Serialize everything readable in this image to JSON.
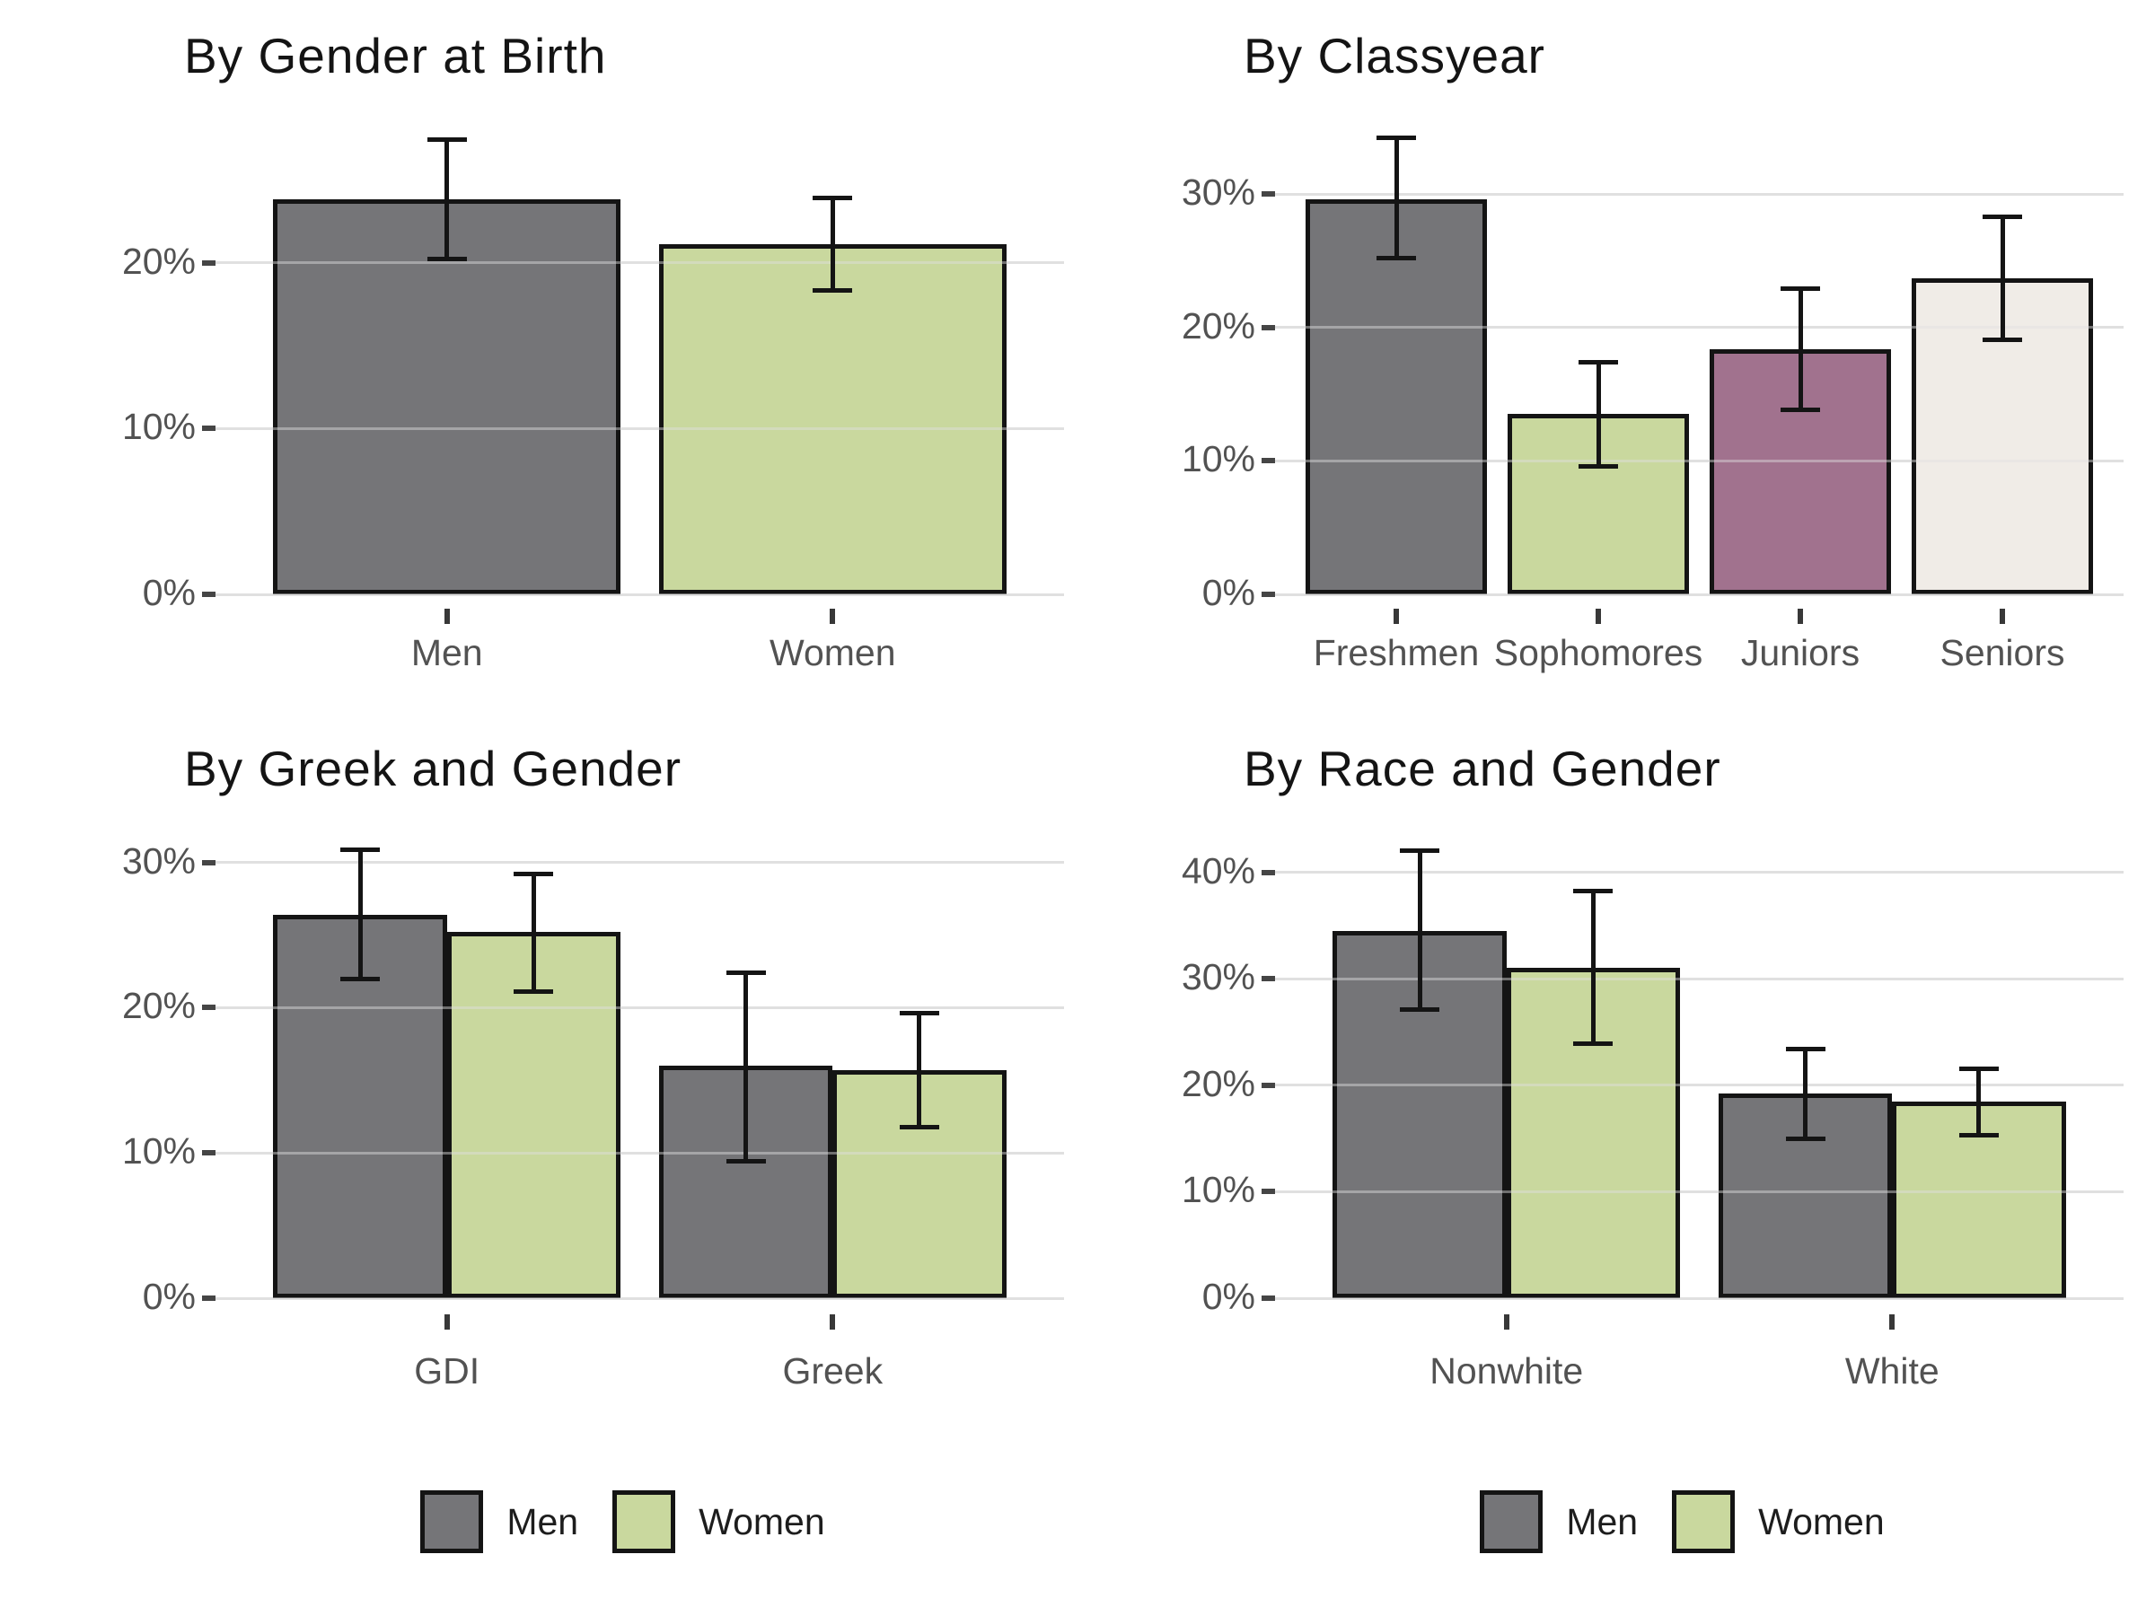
{
  "palette": {
    "background": "#ffffff",
    "men_gray": "#757578",
    "women_green": "#c9d89e",
    "juniors_purple": "#a1728e",
    "seniors_cream": "#f0ece7",
    "bar_outline": "#141414",
    "error_bar": "#141414",
    "gridline": "#e0e0e0",
    "axis_text": "#525252",
    "title_text": "#141414"
  },
  "chart_data": [
    {
      "id": "gender_at_birth",
      "type": "bar",
      "title": "By Gender at Birth",
      "ylabel": "",
      "xlabel": "",
      "grid": "horizontal",
      "ylim": [
        0,
        28.8
      ],
      "yticks": [
        {
          "value": 0,
          "label": "0%"
        },
        {
          "value": 10,
          "label": "10%"
        },
        {
          "value": 20,
          "label": "20%"
        }
      ],
      "categories": [
        "Men",
        "Women"
      ],
      "bars": [
        {
          "category": "Men",
          "value": 23.8,
          "ci_low": 20.2,
          "ci_high": 27.4,
          "color_key": "men_gray"
        },
        {
          "category": "Women",
          "value": 21.1,
          "ci_low": 18.3,
          "ci_high": 23.9,
          "color_key": "women_green"
        }
      ],
      "legend": null
    },
    {
      "id": "classyear",
      "type": "bar",
      "title": "By Classyear",
      "ylabel": "",
      "xlabel": "",
      "grid": "horizontal",
      "ylim": [
        0,
        35.8
      ],
      "yticks": [
        {
          "value": 0,
          "label": "0%"
        },
        {
          "value": 10,
          "label": "10%"
        },
        {
          "value": 20,
          "label": "20%"
        },
        {
          "value": 30,
          "label": "30%"
        }
      ],
      "categories": [
        "Freshmen",
        "Sophomores",
        "Juniors",
        "Seniors"
      ],
      "bars": [
        {
          "category": "Freshmen",
          "value": 29.6,
          "ci_low": 25.2,
          "ci_high": 34.2,
          "color_key": "men_gray"
        },
        {
          "category": "Sophomores",
          "value": 13.5,
          "ci_low": 9.6,
          "ci_high": 17.4,
          "color_key": "women_green"
        },
        {
          "category": "Juniors",
          "value": 18.4,
          "ci_low": 13.8,
          "ci_high": 22.9,
          "color_key": "juniors_purple"
        },
        {
          "category": "Seniors",
          "value": 23.7,
          "ci_low": 19.1,
          "ci_high": 28.3,
          "color_key": "seniors_cream"
        }
      ],
      "legend": null
    },
    {
      "id": "greek_and_gender",
      "type": "grouped_bar",
      "title": "By Greek and Gender",
      "ylabel": "",
      "xlabel": "",
      "grid": "horizontal",
      "ylim": [
        0,
        31.9
      ],
      "yticks": [
        {
          "value": 0,
          "label": "0%"
        },
        {
          "value": 10,
          "label": "10%"
        },
        {
          "value": 20,
          "label": "20%"
        },
        {
          "value": 30,
          "label": "30%"
        }
      ],
      "categories": [
        "GDI",
        "Greek"
      ],
      "series": [
        "Men",
        "Women"
      ],
      "groups": [
        {
          "category": "GDI",
          "bars": [
            {
              "series": "Men",
              "value": 26.4,
              "ci_low": 22.0,
              "ci_high": 30.9,
              "color_key": "men_gray"
            },
            {
              "series": "Women",
              "value": 25.2,
              "ci_low": 21.1,
              "ci_high": 29.2,
              "color_key": "women_green"
            }
          ]
        },
        {
          "category": "Greek",
          "bars": [
            {
              "series": "Men",
              "value": 16.0,
              "ci_low": 9.4,
              "ci_high": 22.4,
              "color_key": "men_gray"
            },
            {
              "series": "Women",
              "value": 15.7,
              "ci_low": 11.8,
              "ci_high": 19.6,
              "color_key": "women_green"
            }
          ]
        }
      ],
      "legend": {
        "position": "bottom",
        "items": [
          {
            "label": "Men",
            "color_key": "men_gray"
          },
          {
            "label": "Women",
            "color_key": "women_green"
          }
        ]
      }
    },
    {
      "id": "race_and_gender",
      "type": "grouped_bar",
      "title": "By Race and Gender",
      "ylabel": "",
      "xlabel": "",
      "grid": "horizontal",
      "ylim": [
        0,
        43.5
      ],
      "yticks": [
        {
          "value": 0,
          "label": "0%"
        },
        {
          "value": 10,
          "label": "10%"
        },
        {
          "value": 20,
          "label": "20%"
        },
        {
          "value": 30,
          "label": "30%"
        },
        {
          "value": 40,
          "label": "40%"
        }
      ],
      "categories": [
        "Nonwhite",
        "White"
      ],
      "series": [
        "Men",
        "Women"
      ],
      "groups": [
        {
          "category": "Nonwhite",
          "bars": [
            {
              "series": "Men",
              "value": 34.5,
              "ci_low": 27.1,
              "ci_high": 42.0,
              "color_key": "men_gray"
            },
            {
              "series": "Women",
              "value": 31.0,
              "ci_low": 23.9,
              "ci_high": 38.2,
              "color_key": "women_green"
            }
          ]
        },
        {
          "category": "White",
          "bars": [
            {
              "series": "Men",
              "value": 19.2,
              "ci_low": 15.0,
              "ci_high": 23.4,
              "color_key": "men_gray"
            },
            {
              "series": "Women",
              "value": 18.5,
              "ci_low": 15.3,
              "ci_high": 21.5,
              "color_key": "women_green"
            }
          ]
        }
      ],
      "legend": {
        "position": "bottom",
        "items": [
          {
            "label": "Men",
            "color_key": "men_gray"
          },
          {
            "label": "Women",
            "color_key": "women_green"
          }
        ]
      }
    }
  ]
}
